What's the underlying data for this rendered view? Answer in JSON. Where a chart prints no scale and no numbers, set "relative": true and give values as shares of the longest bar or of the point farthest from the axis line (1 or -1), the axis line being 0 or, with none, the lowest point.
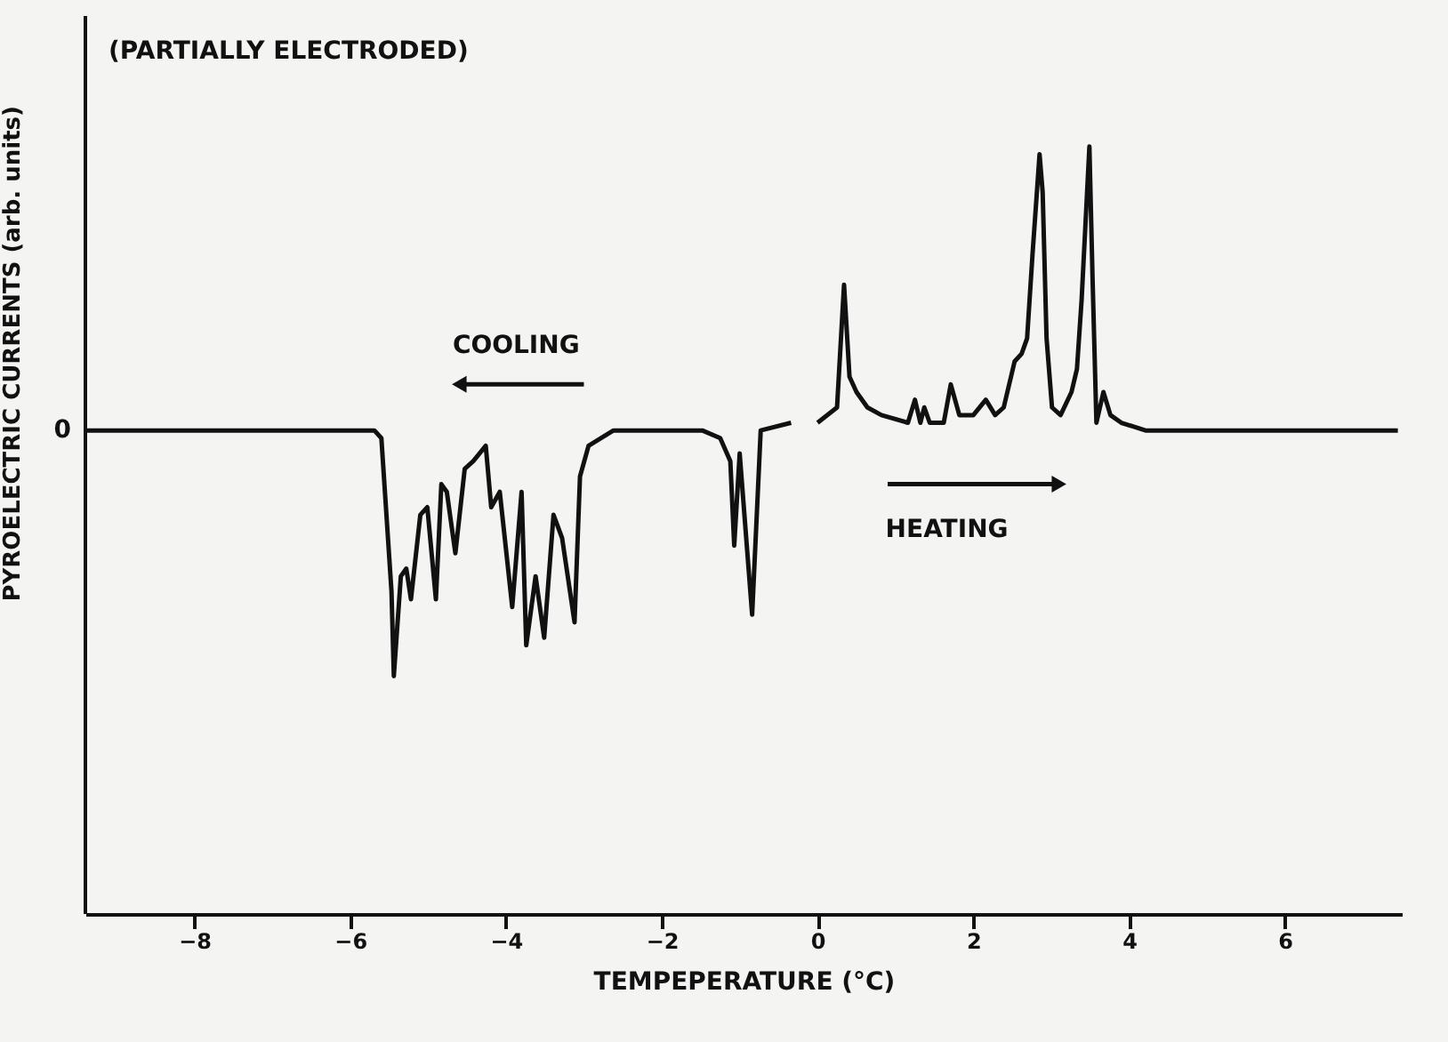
{
  "chart_data": {
    "type": "line",
    "title": "(PARTIALLY ELECTRODED)",
    "xlabel": "TEMPEPERATURE (°C)",
    "ylabel": "PYROELECTRIC CURRENTS (arb. units)",
    "relative": true,
    "annotations": [
      "COOLING",
      "HEATING",
      {
        "text": "0",
        "x": -9.4,
        "y": 0.63
      }
    ],
    "xlim": [
      -9.4,
      7.5
    ],
    "xticks": [
      -8,
      -6,
      -4,
      -2,
      0,
      2,
      4,
      6
    ],
    "grid": false,
    "marker": "none",
    "line_style": "solid",
    "x": [
      -9.38,
      -5.69,
      -5.6,
      -5.47,
      -5.44,
      -5.35,
      -5.28,
      -5.22,
      -5.1,
      -5.01,
      -4.9,
      -4.83,
      -4.76,
      -4.65,
      -4.53,
      -4.42,
      -4.26,
      -4.19,
      -4.08,
      -3.92,
      -3.8,
      -3.74,
      -3.62,
      -3.51,
      -3.39,
      -3.28,
      -3.12,
      -3.05,
      -2.94,
      -2.62,
      -1.48,
      -1.25,
      -1.12,
      -1.07,
      -1.0,
      -0.84,
      -0.73,
      -0.34,
      -0.2,
      0,
      0.25,
      0.34,
      0.41,
      0.5,
      0.64,
      0.82,
      1.16,
      1.25,
      1.32,
      1.37,
      1.44,
      1.62,
      1.71,
      1.82,
      2.0,
      2.16,
      2.28,
      2.39,
      2.53,
      2.62,
      2.69,
      2.76,
      2.85,
      2.89,
      2.94,
      3.01,
      3.12,
      3.26,
      3.33,
      3.39,
      3.49,
      3.53,
      3.58,
      3.67,
      3.76,
      3.9,
      4.21,
      7.45
    ],
    "series": [
      {
        "color": "#111111",
        "values": [
          0.63,
          0.63,
          0.62,
          0.42,
          0.31,
          0.44,
          0.45,
          0.41,
          0.52,
          0.53,
          0.41,
          0.56,
          0.55,
          0.47,
          0.58,
          0.59,
          0.61,
          0.53,
          0.55,
          0.4,
          0.55,
          0.35,
          0.44,
          0.36,
          0.52,
          0.49,
          0.38,
          0.57,
          0.61,
          0.63,
          0.63,
          0.62,
          0.59,
          0.48,
          0.6,
          0.39,
          0.63,
          0.64,
          null,
          0.64,
          0.66,
          0.82,
          0.7,
          0.68,
          0.66,
          0.65,
          0.64,
          0.67,
          0.64,
          0.66,
          0.64,
          0.64,
          0.69,
          0.65,
          0.65,
          0.67,
          0.65,
          0.66,
          0.72,
          0.73,
          0.75,
          0.86,
          0.99,
          0.94,
          0.75,
          0.66,
          0.65,
          0.68,
          0.71,
          0.8,
          1.0,
          0.83,
          0.64,
          0.68,
          0.65,
          0.64,
          0.63,
          0.63
        ]
      }
    ]
  }
}
